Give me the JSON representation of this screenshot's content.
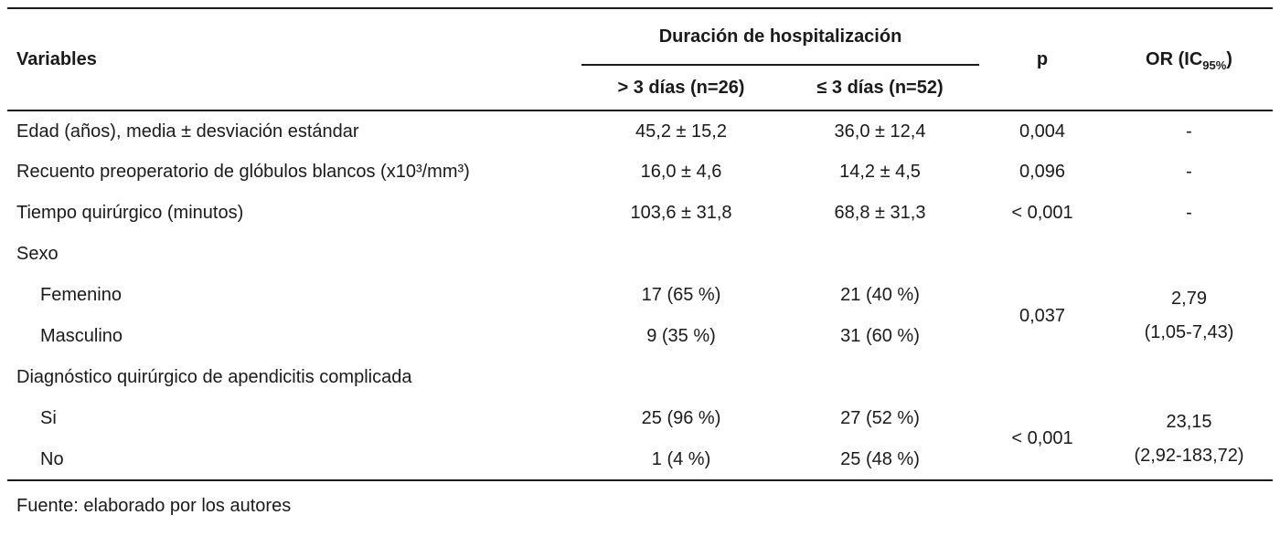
{
  "colors": {
    "text": "#1a1a1a",
    "rule": "#1a1a1a",
    "background": "#ffffff"
  },
  "table": {
    "header": {
      "variables": "Variables",
      "span_title": "Duración de hospitalización",
      "col_gt": "> 3 días (n=26)",
      "col_le": "≤ 3 días (n=52)",
      "p": "p",
      "or_prefix": "OR (IC",
      "or_sub": "95%",
      "or_suffix": ")"
    },
    "rows": [
      {
        "label": "Edad (años), media ± desviación estándar",
        "gt": "45,2 ± 15,2",
        "le": "36,0 ± 12,4",
        "p": "0,004",
        "or": "-"
      },
      {
        "label": "Recuento preoperatorio de glóbulos blancos (x10³/mm³)",
        "gt": "16,0 ± 4,6",
        "le": "14,2 ± 4,5",
        "p": "0,096",
        "or": "-"
      },
      {
        "label": "Tiempo quirúrgico (minutos)",
        "gt": "103,6 ± 31,8",
        "le": "68,8 ± 31,3",
        "p": "< 0,001",
        "or": "-"
      },
      {
        "label": "Sexo"
      },
      {
        "label": "Femenino",
        "gt": "17 (65 %)",
        "le": "21 (40 %)",
        "p": "0,037",
        "or_value": "2,79",
        "or_ci": "(1,05-7,43)"
      },
      {
        "label": "Masculino",
        "gt": "9 (35 %)",
        "le": "31 (60 %)"
      },
      {
        "label": "Diagnóstico quirúrgico de apendicitis complicada"
      },
      {
        "label": "Si",
        "gt": "25 (96 %)",
        "le": "27 (52 %)",
        "p": "< 0,001",
        "or_value": "23,15",
        "or_ci": "(2,92-183,72)"
      },
      {
        "label": "No",
        "gt": "1 (4 %)",
        "le": "25 (48 %)"
      }
    ]
  },
  "footer": {
    "source": "Fuente: elaborado por los autores"
  }
}
